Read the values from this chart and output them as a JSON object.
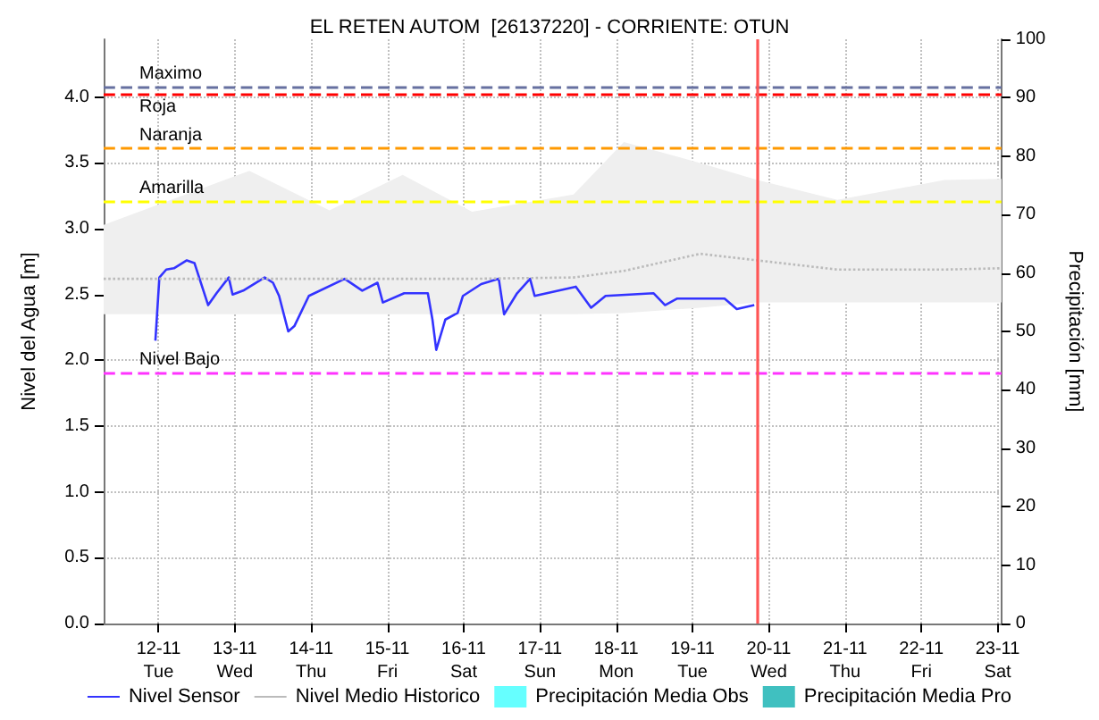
{
  "chart_data": {
    "type": "line",
    "title": "EL RETEN AUTOM  [26137220] - CORRIENTE: OTUN",
    "ylabel": "Nivel del Agua [m]",
    "y2label": "Precipitación [mm]",
    "xlim": [
      "--11-11T06:43",
      "--11-23T01:12"
    ],
    "xticks": [
      {
        "value": "--11-12",
        "label": "12-11\nTue"
      },
      {
        "value": "--11-13",
        "label": "13-11\nWed"
      },
      {
        "value": "--11-14",
        "label": "14-11\nThu"
      },
      {
        "value": "--11-15",
        "label": "15-11\nFri"
      },
      {
        "value": "--11-16",
        "label": "16-11\nSat"
      },
      {
        "value": "--11-17",
        "label": "17-11\nSun"
      },
      {
        "value": "--11-18",
        "label": "18-11\nMon"
      },
      {
        "value": "--11-19",
        "label": "19-11\nTue"
      },
      {
        "value": "--11-20",
        "label": "20-11\nWed"
      },
      {
        "value": "--11-21",
        "label": "21-11\nThu"
      },
      {
        "value": "--11-22",
        "label": "22-11\nFri"
      },
      {
        "value": "--11-23",
        "label": "23-11\nSat"
      }
    ],
    "ylim": [
      0,
      4.44
    ],
    "yticks": [
      {
        "value": 0,
        "label": "0.0"
      },
      0.5,
      {
        "value": 1,
        "label": "1.0"
      },
      1.5,
      {
        "value": 2,
        "label": "2.0"
      },
      2.5,
      {
        "value": 3,
        "label": "3.0"
      },
      3.5,
      {
        "value": 4,
        "label": "4.0"
      }
    ],
    "y2lim": [
      0,
      100
    ],
    "y2ticks": [
      0,
      10,
      20,
      30,
      40,
      50,
      60,
      70,
      80,
      90,
      100
    ],
    "grid": true,
    "legend": "bottom",
    "marker": "none",
    "series": [
      {
        "name": "Nivel Sensor",
        "color": "#3333ff",
        "line_style": "solid",
        "x": [
          "--11-11T23:00",
          "--11-12T00:15",
          "--11-12T02:25",
          "--11-12T04:50",
          "--11-12T08:53",
          "--11-12T11:17",
          "--11-12T15:36",
          "--11-12T18:14",
          "--11-12T22:05",
          "--11-12T23:17",
          "--11-13T02:38",
          "--11-13T09:22",
          "--11-13T12:00",
          "--11-13T13:55",
          "--11-13T16:48",
          "--11-13T18:43",
          "--11-13T23:17",
          "--11-14T10:34",
          "--11-14T16:05",
          "--11-14T20:53",
          "--11-14T22:34",
          "--11-15T05:17",
          "--11-15T12:43",
          "--11-15T14:10",
          "--11-15T15:22",
          "--11-15T18:14",
          "--11-15T22:05",
          "--11-15T23:46",
          "--11-16T05:31",
          "--11-16T11:02",
          "--11-16T12:43",
          "--11-16T16:48",
          "--11-16T20:53",
          "--11-16T22:19",
          "--11-17T11:17",
          "--11-17T16:05",
          "--11-17T20:38",
          "--11-18T11:46",
          "--11-18T15:22",
          "--11-18T19:12",
          "--11-19T10:05",
          "--11-19T13:55",
          "--11-19T19:26"
        ],
        "values": [
          2.15,
          2.63,
          2.69,
          2.7,
          2.76,
          2.74,
          2.42,
          2.51,
          2.63,
          2.5,
          2.53,
          2.63,
          2.59,
          2.49,
          2.22,
          2.26,
          2.49,
          2.62,
          2.53,
          2.59,
          2.44,
          2.51,
          2.51,
          2.31,
          2.08,
          2.31,
          2.36,
          2.49,
          2.58,
          2.62,
          2.35,
          2.51,
          2.62,
          2.49,
          2.56,
          2.4,
          2.49,
          2.51,
          2.42,
          2.47,
          2.47,
          2.39,
          2.42
        ]
      },
      {
        "name": "Nivel Medio Historico",
        "color": "#bbbbbb",
        "line_style": "dotted",
        "x": [
          "--11-11T06:43",
          "--11-13T04:34",
          "--11-14T05:46",
          "--11-15T04:48",
          "--11-16T02:38",
          "--11-17T10:34",
          "--11-18T02:24",
          "--11-19T02:24",
          "--11-19T20:24",
          "--11-20T21:36",
          "--11-22T07:12",
          "--11-23T01:12"
        ],
        "values": [
          2.62,
          2.62,
          2.62,
          2.62,
          2.62,
          2.63,
          2.68,
          2.81,
          2.76,
          2.69,
          2.69,
          2.7
        ],
        "lower": [
          2.35,
          2.35,
          2.35,
          2.35,
          2.35,
          2.35,
          2.36,
          2.4,
          2.44,
          2.44,
          2.44,
          2.44
        ],
        "upper": [
          3.03,
          3.44,
          3.14,
          3.41,
          3.13,
          3.26,
          3.66,
          3.5,
          3.37,
          3.22,
          3.37,
          3.38
        ]
      },
      {
        "name": "Precipitación Media Obs",
        "color": "#66ffff",
        "type": "bar"
      },
      {
        "name": "Precipitación Media Pro",
        "color": "#40c0c0",
        "type": "bar"
      }
    ],
    "ref_lines": [
      {
        "axis": "y",
        "value": 4.08,
        "label": "Maximo",
        "color": "#6670a0",
        "line_style": "dashed"
      },
      {
        "axis": "y",
        "value": 4.02,
        "label": "Roja",
        "color": "#ff0000",
        "line_style": "dashed"
      },
      {
        "axis": "y",
        "value": 3.61,
        "label": "Naranja",
        "color": "#ff9900",
        "line_style": "dashed"
      },
      {
        "axis": "y",
        "value": 3.21,
        "label": "Amarilla",
        "color": "#ffff00",
        "line_style": "dashed"
      },
      {
        "axis": "y",
        "value": 1.91,
        "label": "Nivel Bajo",
        "color": "#ff33ff",
        "line_style": "dashed"
      },
      {
        "axis": "x",
        "value": "--11-19T20:24",
        "color": "#ff5555",
        "line_style": "solid"
      }
    ]
  }
}
